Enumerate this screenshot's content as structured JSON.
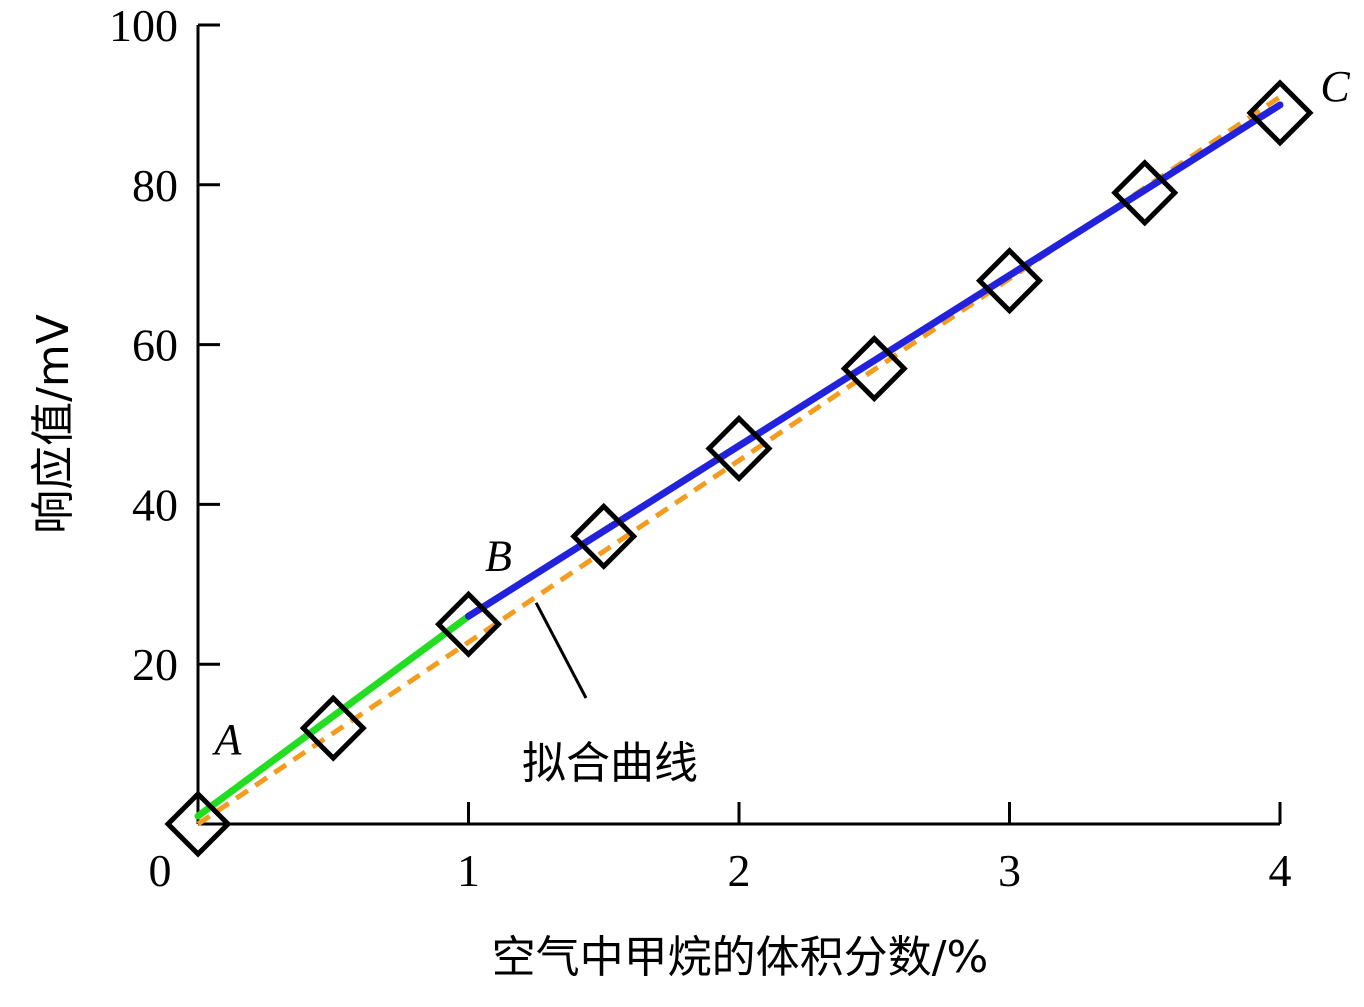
{
  "chart_data": {
    "type": "line",
    "xlabel": "空气中甲烷的体积分数/%",
    "ylabel": "响应值/mV",
    "xlim": [
      0,
      4
    ],
    "ylim": [
      0,
      100
    ],
    "xticks": [
      0,
      1,
      2,
      3,
      4
    ],
    "yticks": [
      20,
      40,
      60,
      80,
      100
    ],
    "x_tick_labels": [
      "0",
      "1",
      "2",
      "3",
      "4"
    ],
    "y_tick_labels": [
      "20",
      "40",
      "60",
      "80",
      "100"
    ],
    "grid": false,
    "markers": {
      "shape": "diamond",
      "x": [
        0,
        0.5,
        1,
        1.5,
        2,
        2.5,
        3,
        3.5,
        4
      ],
      "y": [
        0,
        12,
        25,
        36,
        47,
        57,
        68,
        79,
        89
      ]
    },
    "segments": [
      {
        "color": "#22dd22",
        "x": [
          0,
          1
        ],
        "y": [
          1,
          26
        ]
      },
      {
        "color": "#2222dd",
        "x": [
          1,
          4
        ],
        "y": [
          26,
          90
        ]
      }
    ],
    "fit_curve": {
      "label": "拟合曲线",
      "color": "#f39c1e",
      "dashed": true,
      "x": [
        0,
        4
      ],
      "y": [
        0,
        91
      ]
    },
    "point_labels": [
      {
        "text": "A",
        "x": 0,
        "y": 1
      },
      {
        "text": "B",
        "x": 1,
        "y": 26
      },
      {
        "text": "C",
        "x": 4,
        "y": 90
      }
    ]
  }
}
